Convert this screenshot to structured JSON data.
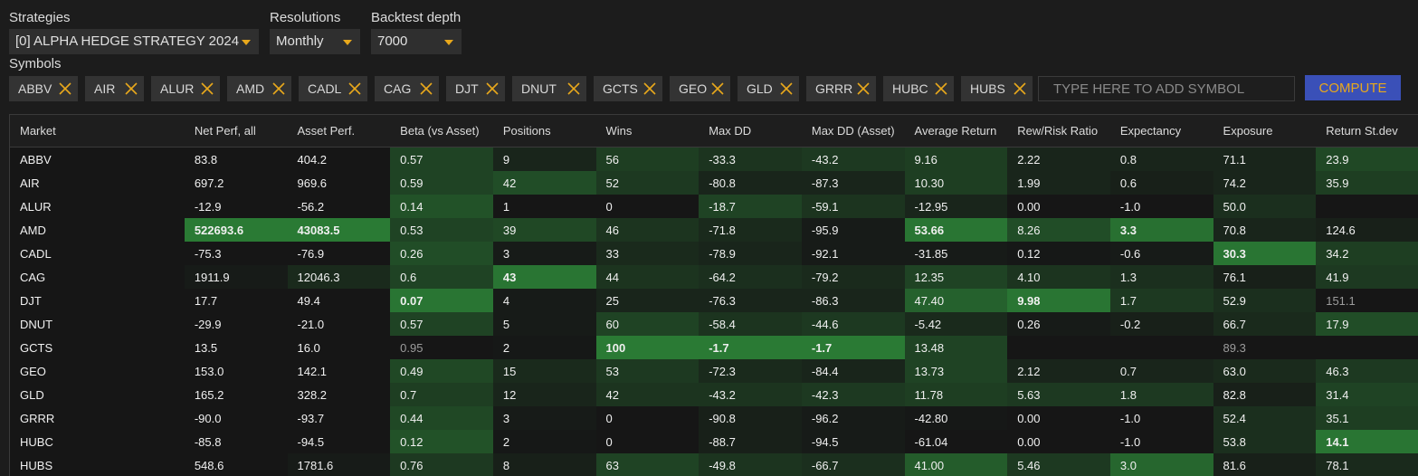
{
  "toolbar": {
    "strategies_label": "Strategies",
    "strategies_value": "[0] ALPHA HEDGE STRATEGY 2024",
    "resolutions_label": "Resolutions",
    "resolutions_value": "Monthly",
    "depth_label": "Backtest depth",
    "depth_value": "7000",
    "symbols_label": "Symbols",
    "symbol_placeholder": "TYPE HERE TO ADD SYMBOL",
    "compute_label": "COMPUTE"
  },
  "symbols": [
    "ABBV",
    "AIR",
    "ALUR",
    "AMD",
    "CADL",
    "CAG",
    "DJT",
    "DNUT",
    "GCTS",
    "GEO",
    "GLD",
    "GRRR",
    "HUBC",
    "HUBS"
  ],
  "colors": {
    "accent": "#e8a81c",
    "button_bg": "#3a50b8",
    "cell_low": "#161616",
    "cell_high": "#2a7a34"
  },
  "table": {
    "headers": [
      "Market",
      "Net Perf, all",
      "Asset Perf.",
      "Beta (vs Asset)",
      "Positions",
      "Wins",
      "Max DD",
      "Max DD (Asset)",
      "Average Return",
      "Rew/Risk Ratio",
      "Expectancy",
      "Exposure",
      "Return St.dev"
    ],
    "rows": [
      {
        "cells": [
          "ABBV",
          "83.8",
          "404.2",
          "0.57",
          "9",
          "56",
          "-33.3",
          "-43.2",
          "9.16",
          "2.22",
          "0.8",
          "71.1",
          "23.9"
        ],
        "heat": [
          0,
          0,
          0,
          0.45,
          0.15,
          0.4,
          0.3,
          0.35,
          0.4,
          0.15,
          0.15,
          0.15,
          0.5
        ]
      },
      {
        "cells": [
          "AIR",
          "697.2",
          "969.6",
          "0.59",
          "42",
          "52",
          "-80.8",
          "-87.3",
          "10.30",
          "1.99",
          "0.6",
          "74.2",
          "35.9"
        ],
        "heat": [
          0,
          0,
          0,
          0.45,
          0.55,
          0.35,
          0.15,
          0.15,
          0.4,
          0.15,
          0.1,
          0.15,
          0.4
        ]
      },
      {
        "cells": [
          "ALUR",
          "-12.9",
          "-56.2",
          "0.14",
          "1",
          "0",
          "-18.7",
          "-59.1",
          "-12.95",
          "0.00",
          "-1.0",
          "50.0",
          ""
        ],
        "heat": [
          0,
          0,
          0,
          0.6,
          0,
          0,
          0.45,
          0.3,
          0.15,
          0,
          0,
          0.25,
          0
        ]
      },
      {
        "cells": [
          "AMD",
          "522693.6",
          "43083.5",
          "0.53",
          "39",
          "46",
          "-71.8",
          "-95.9",
          "53.66",
          "8.26",
          "3.3",
          "70.8",
          "124.6"
        ],
        "heat": [
          0,
          1,
          1,
          0.45,
          0.5,
          0.3,
          0.2,
          0.05,
          0.95,
          0.55,
          0.9,
          0.15,
          0.1
        ],
        "bold": [
          1,
          2,
          8,
          10
        ]
      },
      {
        "cells": [
          "CADL",
          "-75.3",
          "-76.9",
          "0.26",
          "3",
          "33",
          "-78.9",
          "-92.1",
          "-31.85",
          "0.12",
          "-0.6",
          "30.3",
          "34.2"
        ],
        "heat": [
          0,
          0,
          0,
          0.55,
          0.05,
          0.2,
          0.15,
          0.05,
          0.05,
          0.02,
          0.05,
          0.95,
          0.4
        ],
        "bold": [
          11
        ]
      },
      {
        "cells": [
          "CAG",
          "1911.9",
          "12046.3",
          "0.6",
          "43",
          "44",
          "-64.2",
          "-79.2",
          "12.35",
          "4.10",
          "1.3",
          "76.1",
          "41.9"
        ],
        "heat": [
          0,
          0.05,
          0.2,
          0.45,
          0.95,
          0.3,
          0.25,
          0.2,
          0.45,
          0.3,
          0.25,
          0.1,
          0.35
        ],
        "bold": [
          4
        ]
      },
      {
        "cells": [
          "DJT",
          "17.7",
          "49.4",
          "0.07",
          "4",
          "25",
          "-76.3",
          "-86.3",
          "47.40",
          "9.98",
          "1.7",
          "52.9",
          "151.1"
        ],
        "heat": [
          0,
          0,
          0,
          0.95,
          0.05,
          0.15,
          0.15,
          0.15,
          0.75,
          0.95,
          0.35,
          0.25,
          0
        ],
        "bold": [
          3,
          9
        ],
        "dim": [
          12
        ]
      },
      {
        "cells": [
          "DNUT",
          "-29.9",
          "-21.0",
          "0.57",
          "5",
          "60",
          "-58.4",
          "-44.6",
          "-5.42",
          "0.26",
          "-0.2",
          "66.7",
          "17.9"
        ],
        "heat": [
          0,
          0,
          0,
          0.45,
          0.05,
          0.45,
          0.3,
          0.35,
          0.2,
          0.05,
          0.1,
          0.2,
          0.55
        ]
      },
      {
        "cells": [
          "GCTS",
          "13.5",
          "16.0",
          "0.95",
          "2",
          "100",
          "-1.7",
          "-1.7",
          "13.48",
          "",
          "",
          "89.3",
          ""
        ],
        "heat": [
          0,
          0,
          0,
          0,
          0.02,
          1,
          1,
          1,
          0.45,
          0,
          0,
          0,
          0
        ],
        "bold": [
          5,
          6,
          7
        ],
        "dim": [
          3,
          11
        ]
      },
      {
        "cells": [
          "GEO",
          "153.0",
          "142.1",
          "0.49",
          "15",
          "53",
          "-72.3",
          "-84.4",
          "13.73",
          "2.12",
          "0.7",
          "63.0",
          "46.3"
        ],
        "heat": [
          0,
          0,
          0,
          0.5,
          0.2,
          0.35,
          0.2,
          0.15,
          0.45,
          0.15,
          0.15,
          0.2,
          0.35
        ]
      },
      {
        "cells": [
          "GLD",
          "165.2",
          "328.2",
          "0.7",
          "12",
          "42",
          "-43.2",
          "-42.3",
          "11.78",
          "5.63",
          "1.8",
          "82.8",
          "31.4"
        ],
        "heat": [
          0,
          0,
          0,
          0.4,
          0.15,
          0.3,
          0.3,
          0.35,
          0.4,
          0.35,
          0.35,
          0.1,
          0.45
        ]
      },
      {
        "cells": [
          "GRRR",
          "-90.0",
          "-93.7",
          "0.44",
          "3",
          "0",
          "-90.8",
          "-96.2",
          "-42.80",
          "0.00",
          "-1.0",
          "52.4",
          "35.1"
        ],
        "heat": [
          0,
          0,
          0,
          0.5,
          0.05,
          0,
          0.1,
          0.05,
          0.02,
          0,
          0,
          0.25,
          0.4
        ]
      },
      {
        "cells": [
          "HUBC",
          "-85.8",
          "-94.5",
          "0.12",
          "2",
          "0",
          "-88.7",
          "-94.5",
          "-61.04",
          "0.00",
          "-1.0",
          "53.8",
          "14.1"
        ],
        "heat": [
          0,
          0,
          0,
          0.6,
          0.02,
          0,
          0.1,
          0.05,
          0,
          0,
          0,
          0.25,
          0.95
        ],
        "bold": [
          12
        ]
      },
      {
        "cells": [
          "HUBS",
          "548.6",
          "1781.6",
          "0.76",
          "8",
          "63",
          "-49.8",
          "-66.7",
          "41.00",
          "5.46",
          "3.0",
          "81.6",
          "78.1"
        ],
        "heat": [
          0,
          0,
          0.05,
          0.35,
          0.1,
          0.45,
          0.3,
          0.25,
          0.7,
          0.35,
          0.8,
          0.1,
          0.2
        ]
      }
    ]
  }
}
